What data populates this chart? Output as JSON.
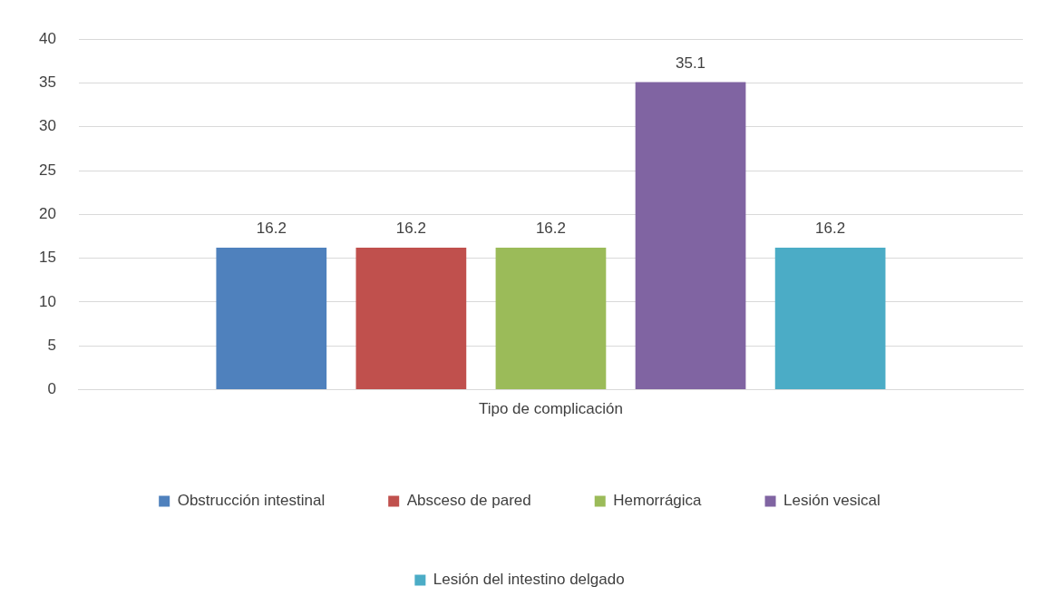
{
  "chart_data": {
    "type": "bar",
    "categories": [
      "Tipo de complicación"
    ],
    "series": [
      {
        "name": "Obstrucción intestinal",
        "color": "#4f81bd",
        "values": [
          16.2
        ]
      },
      {
        "name": "Absceso de pared",
        "color": "#c0504d",
        "values": [
          16.2
        ]
      },
      {
        "name": "Hemorrágica",
        "color": "#9bbb59",
        "values": [
          16.2
        ]
      },
      {
        "name": "Lesión vesical",
        "color": "#8064a2",
        "values": [
          35.1
        ]
      },
      {
        "name": "Lesión del intestino delgado",
        "color": "#4bacc6",
        "values": [
          16.2
        ]
      }
    ],
    "ylim": [
      0,
      40
    ],
    "yticks": [
      0,
      5,
      10,
      15,
      20,
      25,
      30,
      35,
      40
    ],
    "grid": "y",
    "legend": "bottom",
    "data_labels": true
  }
}
